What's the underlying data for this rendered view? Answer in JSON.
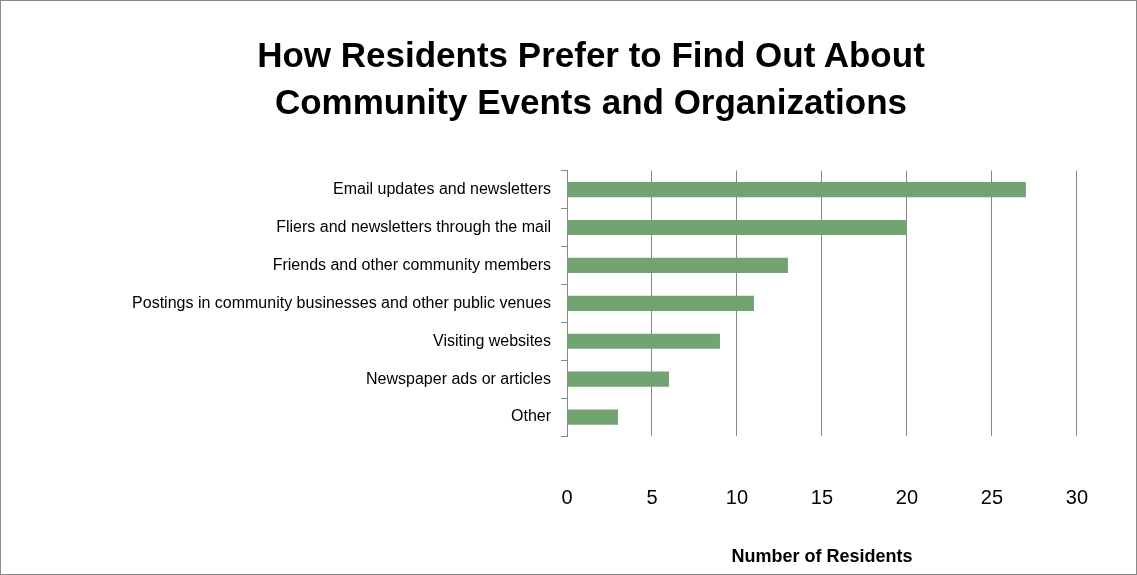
{
  "chart_data": {
    "type": "bar",
    "orientation": "horizontal",
    "title": "How Residents Prefer to Find Out About Community Events and Organizations",
    "xlabel": "Number of Residents",
    "categories": [
      "Email updates and newsletters",
      "Fliers and newsletters through the mail",
      "Friends and other community members",
      "Postings in community businesses and other public venues",
      "Visiting websites",
      "Newspaper ads or articles",
      "Other"
    ],
    "values": [
      27,
      20,
      13,
      11,
      9,
      6,
      3
    ],
    "color": "#72a472",
    "xlim": [
      0,
      30
    ],
    "xticks": [
      0,
      5,
      10,
      15,
      20,
      25,
      30
    ],
    "grid": "x",
    "legend": false
  }
}
